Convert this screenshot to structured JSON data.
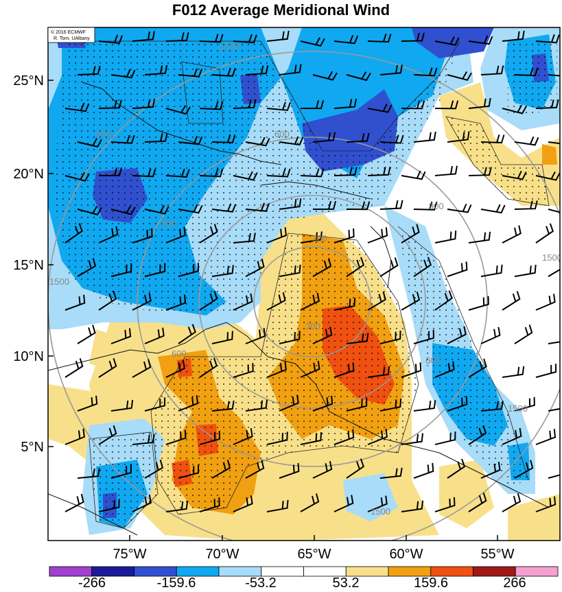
{
  "title": "F012 Average Meridional Wind",
  "credit": {
    "line1": "© 2016 ECMWF",
    "line2": "R. Torn, UAlbany"
  },
  "lat_labels": [
    "25°N",
    "20°N",
    "15°N",
    "10°N",
    "5°N"
  ],
  "lon_labels": [
    "75°W",
    "70°W",
    "65°W",
    "60°W",
    "55°W"
  ],
  "contour_labels": [
    "300",
    "600",
    "900",
    "1500"
  ],
  "colorbar": {
    "labels": [
      "-266",
      "-159.6",
      "-53.2",
      "53.2",
      "159.6",
      "266"
    ],
    "colors": [
      "#a040d0",
      "#1a1a9a",
      "#3050d0",
      "#10a8f0",
      "#a8dcf8",
      "#ffffff",
      "#ffffff",
      "#f8e08a",
      "#f0a010",
      "#f05010",
      "#a01818",
      "#f4a0d0"
    ]
  },
  "fill_colors": {
    "dark_blue": "#3050d0",
    "mid_blue": "#10a8f0",
    "light_blue": "#a8dcf8",
    "light_yellow": "#f8e08a",
    "orange": "#f0a010",
    "red_orange": "#f05010"
  }
}
